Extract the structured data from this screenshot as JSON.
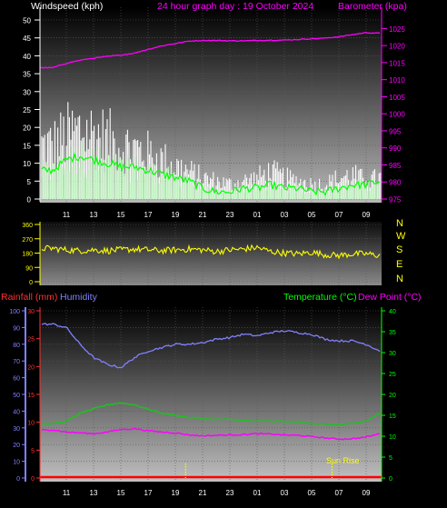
{
  "header": {
    "left_label": "Windspeed (kph)",
    "center_label": "24 hour graph day : 19 October 2024",
    "right_label": "Barometer (kpa)"
  },
  "wind_dir_labels": [
    "N",
    "W",
    "S",
    "E",
    "N"
  ],
  "bottom_labels": {
    "rain": "Rainfall (mm)",
    "humidity": "Humidity",
    "temperature": "Temperature (°C)",
    "dewpoint": "Dew Point (°C)",
    "sunrise": "Sun Rise"
  },
  "colors": {
    "background": "#000000",
    "wind_gust": "#ffffff",
    "wind_avg": "#c8ffc8",
    "wind_avg_line": "#00ff00",
    "barometer": "#ff00ff",
    "direction": "#ffff00",
    "humidity": "#8080ff",
    "temperature": "#20c020",
    "dewpoint": "#ff00ff",
    "rain": "#ff0000",
    "day_night_marker": "#ffff00"
  },
  "chart_data": [
    {
      "type": "line",
      "x_ticks": [
        "11",
        "13",
        "15",
        "17",
        "19",
        "21",
        "23",
        "01",
        "03",
        "05",
        "07",
        "09"
      ],
      "y_left": {
        "ylim": [
          0,
          50
        ],
        "ticks": [
          0,
          5,
          10,
          15,
          20,
          25,
          30,
          35,
          40,
          45,
          50
        ]
      },
      "y_right": {
        "ylim": [
          975,
          1027.5
        ],
        "ticks": [
          975,
          980,
          985,
          990,
          995,
          1000,
          1005,
          1010,
          1015,
          1020,
          1025
        ]
      },
      "series": [
        {
          "kind": "gust-bars",
          "axis": "left",
          "hours": [
            0,
            1,
            2,
            3,
            4,
            5,
            6,
            7,
            8,
            9,
            10,
            11,
            12,
            13,
            14,
            15,
            16,
            17,
            18,
            19,
            20,
            21,
            22,
            23,
            24
          ],
          "values": [
            18,
            21,
            23,
            22,
            20,
            18,
            17,
            15,
            13,
            11,
            9,
            7,
            6,
            5,
            6,
            7,
            9,
            7,
            6,
            5,
            5,
            7,
            8,
            6,
            7
          ]
        },
        {
          "kind": "average-line",
          "axis": "left",
          "hours": [
            0,
            1,
            2,
            3,
            4,
            5,
            6,
            7,
            8,
            9,
            10,
            11,
            12,
            13,
            14,
            15,
            16,
            17,
            18,
            19,
            20,
            21,
            22,
            23,
            24
          ],
          "values": [
            8,
            11,
            12,
            11,
            10,
            9,
            9,
            8,
            7,
            6,
            5,
            3,
            2,
            2,
            3,
            3,
            4,
            3,
            3,
            2,
            2,
            3,
            4,
            4,
            5
          ]
        },
        {
          "kind": "barometer",
          "axis": "right",
          "hours": [
            0,
            1,
            2,
            3,
            4,
            5,
            6,
            7,
            8,
            9,
            10,
            11,
            12,
            13,
            14,
            15,
            16,
            17,
            18,
            19,
            20,
            21,
            22,
            23,
            24
          ],
          "values": [
            1013.5,
            1014.8,
            1015.7,
            1016.3,
            1016.8,
            1017.2,
            1017.8,
            1018.9,
            1019.9,
            1020.6,
            1021.3,
            1021.5,
            1021.5,
            1021.4,
            1021.4,
            1021.5,
            1021.6,
            1021.6,
            1021.8,
            1022.0,
            1022.2,
            1022.6,
            1023.2,
            1023.8,
            1023.6
          ]
        }
      ]
    },
    {
      "type": "line",
      "y_ticks": [
        0,
        90,
        180,
        270,
        360
      ],
      "ylim": [
        0,
        360
      ],
      "series": [
        {
          "kind": "direction",
          "hours": [
            0,
            1,
            2,
            3,
            4,
            5,
            6,
            7,
            8,
            9,
            10,
            11,
            12,
            13,
            14,
            15,
            16,
            17,
            18,
            19,
            20,
            21,
            22,
            23,
            24
          ],
          "values": [
            210,
            200,
            195,
            200,
            195,
            200,
            205,
            200,
            195,
            200,
            205,
            200,
            190,
            200,
            205,
            215,
            190,
            180,
            175,
            185,
            170,
            165,
            175,
            175,
            165
          ]
        }
      ]
    },
    {
      "type": "line",
      "x_ticks": [
        "11",
        "13",
        "15",
        "17",
        "19",
        "21",
        "23",
        "01",
        "03",
        "05",
        "07",
        "09"
      ],
      "y_far_left": {
        "label": "Humidity",
        "ylim": [
          0,
          100
        ],
        "ticks": [
          0,
          10,
          20,
          30,
          40,
          50,
          60,
          70,
          80,
          90,
          100
        ]
      },
      "y_left": {
        "label": "Rainfall (mm)",
        "ylim": [
          0,
          30
        ],
        "ticks": [
          0,
          5,
          10,
          15,
          20,
          25,
          30
        ]
      },
      "y_right": {
        "label": "Temperature (°C)",
        "ylim": [
          0,
          40
        ],
        "ticks": [
          0,
          5,
          10,
          15,
          20,
          25,
          30,
          35,
          40
        ]
      },
      "series": [
        {
          "name": "Humidity",
          "axis": "far-left",
          "hours": [
            0,
            1,
            2,
            3,
            4,
            5,
            6,
            7,
            8,
            9,
            10,
            11,
            12,
            13,
            14,
            15,
            16,
            17,
            18,
            19,
            20,
            21,
            22,
            23,
            24
          ],
          "values": [
            92,
            90,
            80,
            72,
            68,
            66,
            72,
            76,
            78,
            80,
            80,
            81,
            83,
            84,
            86,
            85,
            87,
            88,
            87,
            86,
            83,
            82,
            82,
            80,
            76
          ]
        },
        {
          "name": "Temperature (°C)",
          "axis": "right",
          "hours": [
            0,
            1,
            2,
            3,
            4,
            5,
            6,
            7,
            8,
            9,
            10,
            11,
            12,
            13,
            14,
            15,
            16,
            17,
            18,
            19,
            20,
            21,
            22,
            23,
            24
          ],
          "values": [
            13,
            13.5,
            15.5,
            16.5,
            17.5,
            18,
            17.5,
            16.5,
            15.5,
            15,
            14.5,
            14.2,
            14,
            14,
            13.8,
            13.5,
            13.6,
            13.5,
            13.4,
            13.1,
            12.8,
            12.7,
            13.0,
            13.6,
            15.5
          ]
        },
        {
          "name": "Dew Point (°C)",
          "axis": "right",
          "hours": [
            0,
            1,
            2,
            3,
            4,
            5,
            6,
            7,
            8,
            9,
            10,
            11,
            12,
            13,
            14,
            15,
            16,
            17,
            18,
            19,
            20,
            21,
            22,
            23,
            24
          ],
          "values": [
            11.5,
            11,
            10.8,
            10.6,
            11.0,
            11.6,
            11.8,
            11.3,
            11.0,
            10.8,
            10.3,
            10.1,
            10.2,
            10.3,
            10.4,
            10.6,
            10.5,
            10.3,
            10.2,
            9.9,
            9.6,
            9.3,
            9.4,
            9.8,
            10.6
          ]
        },
        {
          "name": "Rainfall (mm)",
          "axis": "left",
          "hours": [
            0,
            24
          ],
          "values": [
            0,
            0
          ]
        }
      ],
      "markers": [
        {
          "label": "Sun Rise",
          "hour": 20.5
        }
      ]
    }
  ]
}
